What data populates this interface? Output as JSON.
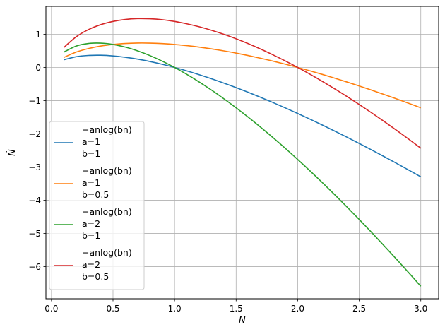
{
  "chart_data": {
    "type": "line",
    "title": "",
    "xlabel": "N",
    "ylabel": "Ṅ",
    "xlim": [
      -0.045,
      3.145
    ],
    "ylim": [
      -6.97,
      1.84
    ],
    "grid": true,
    "legend_placement": "lower-left",
    "x_ticks": [
      {
        "value": 0.0,
        "label": "0.0"
      },
      {
        "value": 0.5,
        "label": "0.5"
      },
      {
        "value": 1.0,
        "label": "1.0"
      },
      {
        "value": 1.5,
        "label": "1.5"
      },
      {
        "value": 2.0,
        "label": "2.0"
      },
      {
        "value": 2.5,
        "label": "2.5"
      },
      {
        "value": 3.0,
        "label": "3.0"
      }
    ],
    "y_ticks": [
      {
        "value": 1,
        "label": "1"
      },
      {
        "value": 0,
        "label": "0"
      },
      {
        "value": -1,
        "label": "−1"
      },
      {
        "value": -2,
        "label": "−2"
      },
      {
        "value": -3,
        "label": "−3"
      },
      {
        "value": -4,
        "label": "−4"
      },
      {
        "value": -5,
        "label": "−5"
      },
      {
        "value": -6,
        "label": "−6"
      }
    ],
    "x": [
      0.1,
      0.2,
      0.3,
      0.4,
      0.5,
      0.6,
      0.7,
      0.8,
      0.9,
      1.0,
      1.1,
      1.2,
      1.3,
      1.4,
      1.5,
      1.6,
      1.7,
      1.8,
      1.9,
      2.0,
      2.1,
      2.2,
      2.3,
      2.4,
      2.5,
      2.6,
      2.7,
      2.8,
      2.9,
      3.0
    ],
    "series": [
      {
        "expr": "−anlog(bn)",
        "a_label": "a=1",
        "b_label": "b=1",
        "color": "#1f77b4",
        "values": [
          0.23,
          0.322,
          0.361,
          0.367,
          0.347,
          0.306,
          0.25,
          0.179,
          0.095,
          0.0,
          -0.105,
          -0.219,
          -0.341,
          -0.471,
          -0.608,
          -0.752,
          -0.902,
          -1.058,
          -1.22,
          -1.386,
          -1.558,
          -1.735,
          -1.916,
          -2.101,
          -2.291,
          -2.484,
          -2.682,
          -2.883,
          -3.088,
          -3.296
        ]
      },
      {
        "expr": "−anlog(bn)",
        "a_label": "a=1",
        "b_label": "b=0.5",
        "color": "#ff7f0e",
        "values": [
          0.3,
          0.461,
          0.569,
          0.644,
          0.693,
          0.722,
          0.735,
          0.733,
          0.719,
          0.693,
          0.657,
          0.613,
          0.56,
          0.499,
          0.432,
          0.357,
          0.276,
          0.19,
          0.097,
          0.0,
          -0.102,
          -0.21,
          -0.322,
          -0.438,
          -0.559,
          -0.683,
          -0.811,
          -0.942,
          -1.078,
          -1.216
        ]
      },
      {
        "expr": "−anlog(bn)",
        "a_label": "a=2",
        "b_label": "b=1",
        "color": "#2ca02c",
        "values": [
          0.461,
          0.644,
          0.722,
          0.733,
          0.693,
          0.613,
          0.499,
          0.357,
          0.19,
          0.0,
          -0.21,
          -0.438,
          -0.682,
          -0.942,
          -1.216,
          -1.504,
          -1.804,
          -2.116,
          -2.439,
          -2.773,
          -3.116,
          -3.469,
          -3.831,
          -4.202,
          -4.581,
          -4.969,
          -5.364,
          -5.766,
          -6.176,
          -6.592
        ]
      },
      {
        "expr": "−anlog(bn)",
        "a_label": "a=2",
        "b_label": "b=0.5",
        "color": "#d62728",
        "values": [
          0.599,
          0.921,
          1.139,
          1.288,
          1.386,
          1.445,
          1.471,
          1.466,
          1.438,
          1.386,
          1.314,
          1.226,
          1.12,
          0.999,
          0.863,
          0.714,
          0.552,
          0.379,
          0.195,
          0.0,
          -0.205,
          -0.419,
          -0.643,
          -0.875,
          -1.116,
          -1.365,
          -1.622,
          -1.885,
          -2.155,
          -2.433
        ]
      }
    ]
  }
}
